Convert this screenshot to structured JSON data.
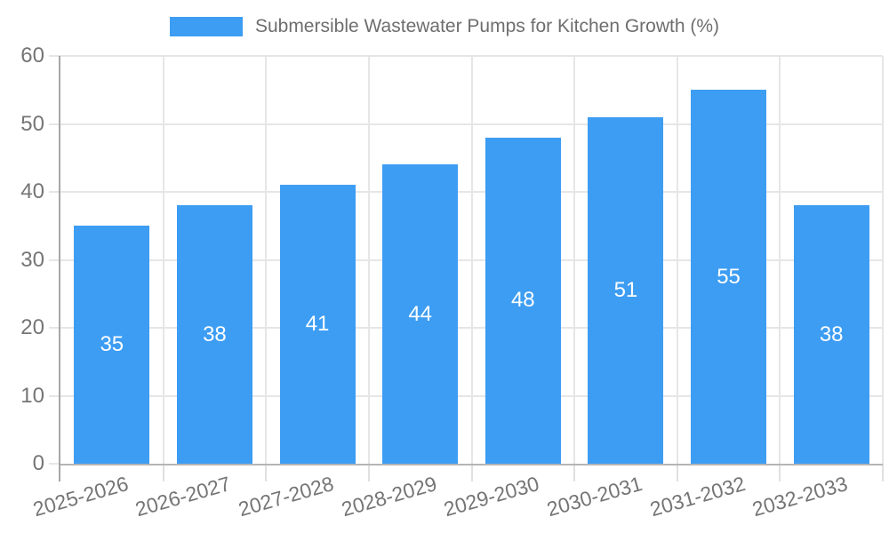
{
  "legend": {
    "label": "Submersible Wastewater Pumps for Kitchen Growth (%)",
    "swatch_color": "#3d9df3"
  },
  "colors": {
    "bar": "#3d9df3",
    "grid": "#e6e6e6",
    "y_axis": "#a6a6a6",
    "x_axis": "#b5b5b5",
    "tick_label": "#757575",
    "title": "#6e6e6e",
    "value_label": "#ffffff",
    "background": "#ffffff"
  },
  "chart_data": {
    "type": "bar",
    "title": "Submersible Wastewater Pumps for Kitchen Growth (%)",
    "categories": [
      "2025-2026",
      "2026-2027",
      "2027-2028",
      "2028-2029",
      "2029-2030",
      "2030-2031",
      "2031-2032",
      "2032-2033"
    ],
    "values": [
      35,
      38,
      41,
      44,
      48,
      51,
      55,
      38
    ],
    "xlabel": "",
    "ylabel": "",
    "ylim": [
      0,
      60
    ],
    "yticks": [
      0,
      10,
      20,
      30,
      40,
      50,
      60
    ],
    "grid": "horizontal gridlines at each ytick, vertical gridlines at category boundaries",
    "legend_position": "top-center",
    "bar_label_position": "center",
    "x_tick_rotation_deg": -16
  }
}
